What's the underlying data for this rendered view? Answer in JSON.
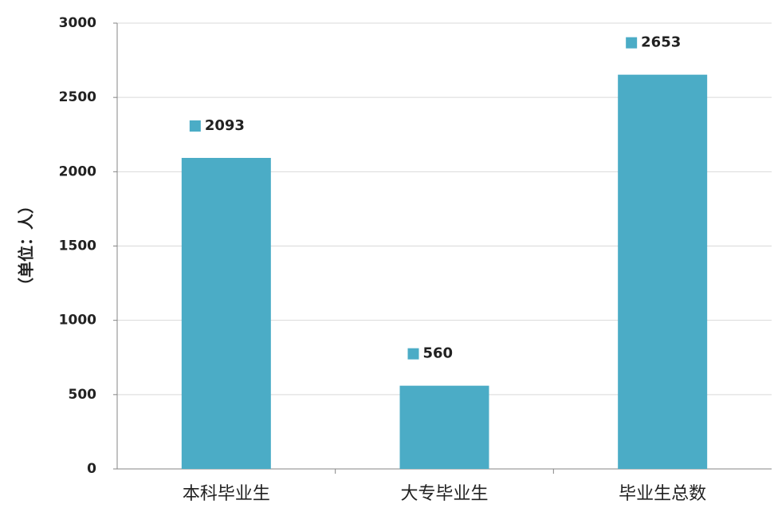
{
  "chart_data": {
    "type": "bar",
    "categories": [
      "本科毕业生",
      "大专毕业生",
      "毕业生总数"
    ],
    "values": [
      2093,
      560,
      2653
    ],
    "xlabel": "",
    "ylabel": "（单位：人）",
    "ylim": [
      0,
      3000
    ],
    "yticks": [
      0,
      500,
      1000,
      1500,
      2000,
      2500,
      3000
    ],
    "ytick_labels": [
      "0",
      "500",
      "1000",
      "1500",
      "2000",
      "2500",
      "3000"
    ],
    "data_labels": [
      "2093",
      "560",
      "2653"
    ],
    "grid": true,
    "legend": "none",
    "colors": {
      "bar": "#4BACC6",
      "grid": "#D9D9D9",
      "axis": "#868686"
    }
  }
}
